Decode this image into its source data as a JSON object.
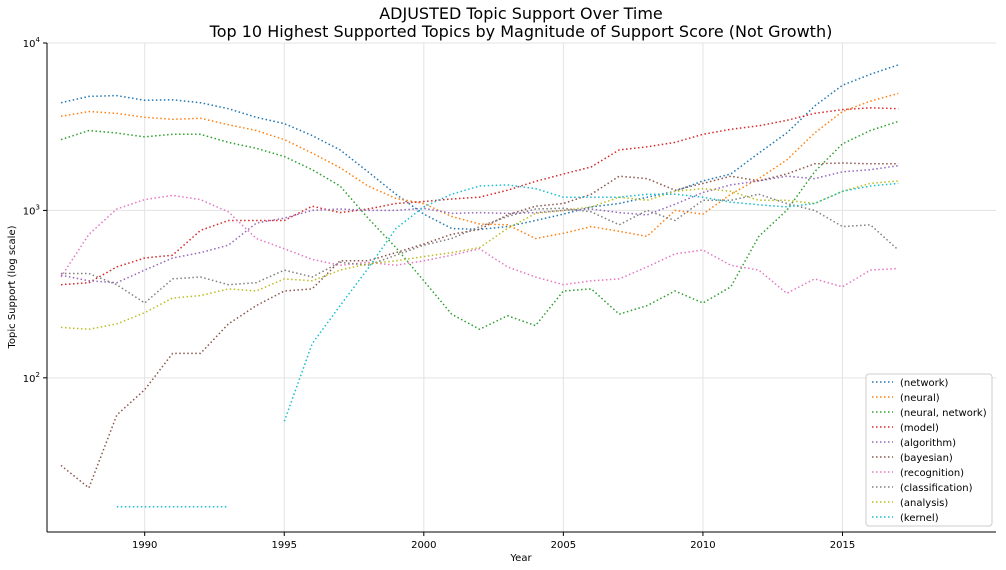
{
  "chart_data": {
    "type": "line",
    "title": "ADJUSTED Topic Support Over Time",
    "subtitle": "Top 10 Highest Supported Topics by Magnitude of Support Score (Not Growth)",
    "xlabel": "Year",
    "ylabel": "Topic Support (log scale)",
    "xlim": [
      1986.5,
      2020.5
    ],
    "ylim": [
      12,
      10000
    ],
    "yscale": "log",
    "grid": true,
    "legend_position": "lower-right",
    "line_style": "dotted",
    "x_ticks": [
      1990,
      1995,
      2000,
      2005,
      2010,
      2015
    ],
    "y_ticks": [
      {
        "value": 100,
        "base": "10",
        "exp": "2"
      },
      {
        "value": 1000,
        "base": "10",
        "exp": "3"
      },
      {
        "value": 10000,
        "base": "10",
        "exp": "4"
      }
    ],
    "x": [
      1987,
      1988,
      1989,
      1990,
      1991,
      1992,
      1993,
      1994,
      1995,
      1996,
      1997,
      1998,
      1999,
      2000,
      2001,
      2002,
      2003,
      2004,
      2005,
      2006,
      2007,
      2008,
      2009,
      2010,
      2011,
      2012,
      2013,
      2014,
      2015,
      2016,
      2017
    ],
    "series": [
      {
        "name": "(network)",
        "color": "#1f77b4",
        "values": [
          4400,
          4800,
          4850,
          4550,
          4580,
          4400,
          4050,
          3600,
          3300,
          2800,
          2300,
          1700,
          1250,
          950,
          780,
          770,
          800,
          870,
          950,
          1050,
          1100,
          1200,
          1300,
          1500,
          1650,
          2200,
          2900,
          4200,
          5600,
          6500,
          7400
        ]
      },
      {
        "name": "(neural)",
        "color": "#ff7f0e",
        "values": [
          3650,
          3900,
          3800,
          3600,
          3500,
          3550,
          3250,
          3000,
          2650,
          2200,
          1800,
          1400,
          1180,
          1100,
          920,
          830,
          820,
          680,
          730,
          800,
          750,
          700,
          1000,
          950,
          1250,
          1550,
          2000,
          2900,
          3900,
          4500,
          5000
        ]
      },
      {
        "name": "(neural, network)",
        "color": "#2ca02c",
        "values": [
          2650,
          3000,
          2900,
          2750,
          2850,
          2850,
          2550,
          2350,
          2100,
          1750,
          1400,
          900,
          600,
          380,
          240,
          195,
          235,
          205,
          330,
          340,
          240,
          270,
          330,
          280,
          350,
          700,
          1000,
          1700,
          2500,
          3000,
          3400
        ]
      },
      {
        "name": "(model)",
        "color": "#d62728",
        "values": [
          360,
          370,
          460,
          520,
          540,
          760,
          870,
          870,
          870,
          1060,
          970,
          1020,
          1100,
          1130,
          1170,
          1200,
          1320,
          1490,
          1650,
          1820,
          2300,
          2400,
          2550,
          2850,
          3050,
          3200,
          3450,
          3800,
          4000,
          4100,
          4050
        ]
      },
      {
        "name": "(algorithm)",
        "color": "#9467bd",
        "values": [
          410,
          380,
          370,
          440,
          520,
          560,
          620,
          840,
          900,
          1000,
          1020,
          1000,
          1000,
          1030,
          960,
          970,
          960,
          970,
          1000,
          1020,
          970,
          940,
          1090,
          1280,
          1420,
          1500,
          1600,
          1550,
          1700,
          1750,
          1850
        ]
      },
      {
        "name": "(bayesian)",
        "color": "#8c564b",
        "values": [
          30,
          22,
          60,
          85,
          140,
          140,
          210,
          270,
          330,
          340,
          500,
          500,
          560,
          630,
          720,
          770,
          940,
          1060,
          1100,
          1250,
          1600,
          1550,
          1320,
          1450,
          1600,
          1500,
          1650,
          1900,
          1920,
          1900,
          1900
        ]
      },
      {
        "name": "(recognition)",
        "color": "#e377c2",
        "values": [
          400,
          720,
          1020,
          1160,
          1230,
          1160,
          980,
          680,
          590,
          510,
          470,
          490,
          470,
          500,
          540,
          590,
          460,
          400,
          360,
          380,
          390,
          460,
          550,
          580,
          470,
          440,
          320,
          390,
          350,
          440,
          450
        ]
      },
      {
        "name": "(classification)",
        "color": "#7f7f7f",
        "values": [
          420,
          420,
          360,
          280,
          390,
          400,
          360,
          370,
          440,
          400,
          490,
          470,
          540,
          620,
          680,
          800,
          920,
          1020,
          1030,
          980,
          820,
          1000,
          870,
          1150,
          1150,
          1250,
          1100,
          1000,
          800,
          820,
          580
        ]
      },
      {
        "name": "(analysis)",
        "color": "#bcbd22",
        "values": [
          200,
          195,
          210,
          245,
          300,
          310,
          340,
          330,
          390,
          380,
          440,
          480,
          500,
          530,
          560,
          600,
          780,
          960,
          1000,
          1050,
          1200,
          1150,
          1300,
          1350,
          1300,
          1150,
          1150,
          1100,
          1300,
          1450,
          1500
        ]
      },
      {
        "name": "(kernel)",
        "color": "#17becf",
        "values": [
          null,
          null,
          17,
          17,
          17,
          17,
          17,
          null,
          55,
          160,
          270,
          450,
          780,
          1050,
          1250,
          1400,
          1420,
          1350,
          1200,
          1200,
          1200,
          1250,
          1250,
          1200,
          1120,
          1080,
          1050,
          1100,
          1300,
          1400,
          1450
        ]
      }
    ]
  }
}
